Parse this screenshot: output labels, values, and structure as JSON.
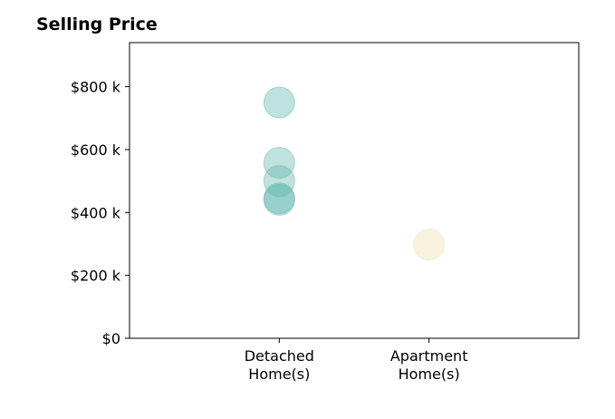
{
  "chart_data": {
    "type": "scatter",
    "title": "Selling Price",
    "categories": [
      "Detached\nHome(s)",
      "Apartment\nHome(s)"
    ],
    "yticks": [
      {
        "value": 0,
        "label": "$0"
      },
      {
        "value": 200,
        "label": "$200 k"
      },
      {
        "value": 400,
        "label": "$400 k"
      },
      {
        "value": 600,
        "label": "$600 k"
      },
      {
        "value": 800,
        "label": "$800 k"
      }
    ],
    "ylim": [
      0,
      940
    ],
    "xlim": [
      0,
      3
    ],
    "grid": false,
    "series": [
      {
        "category_index": 0,
        "color": "#5ab4ac",
        "values": [
          750,
          558,
          500,
          445,
          440
        ]
      },
      {
        "category_index": 1,
        "color": "#f0dca8",
        "values": [
          298
        ]
      }
    ]
  }
}
